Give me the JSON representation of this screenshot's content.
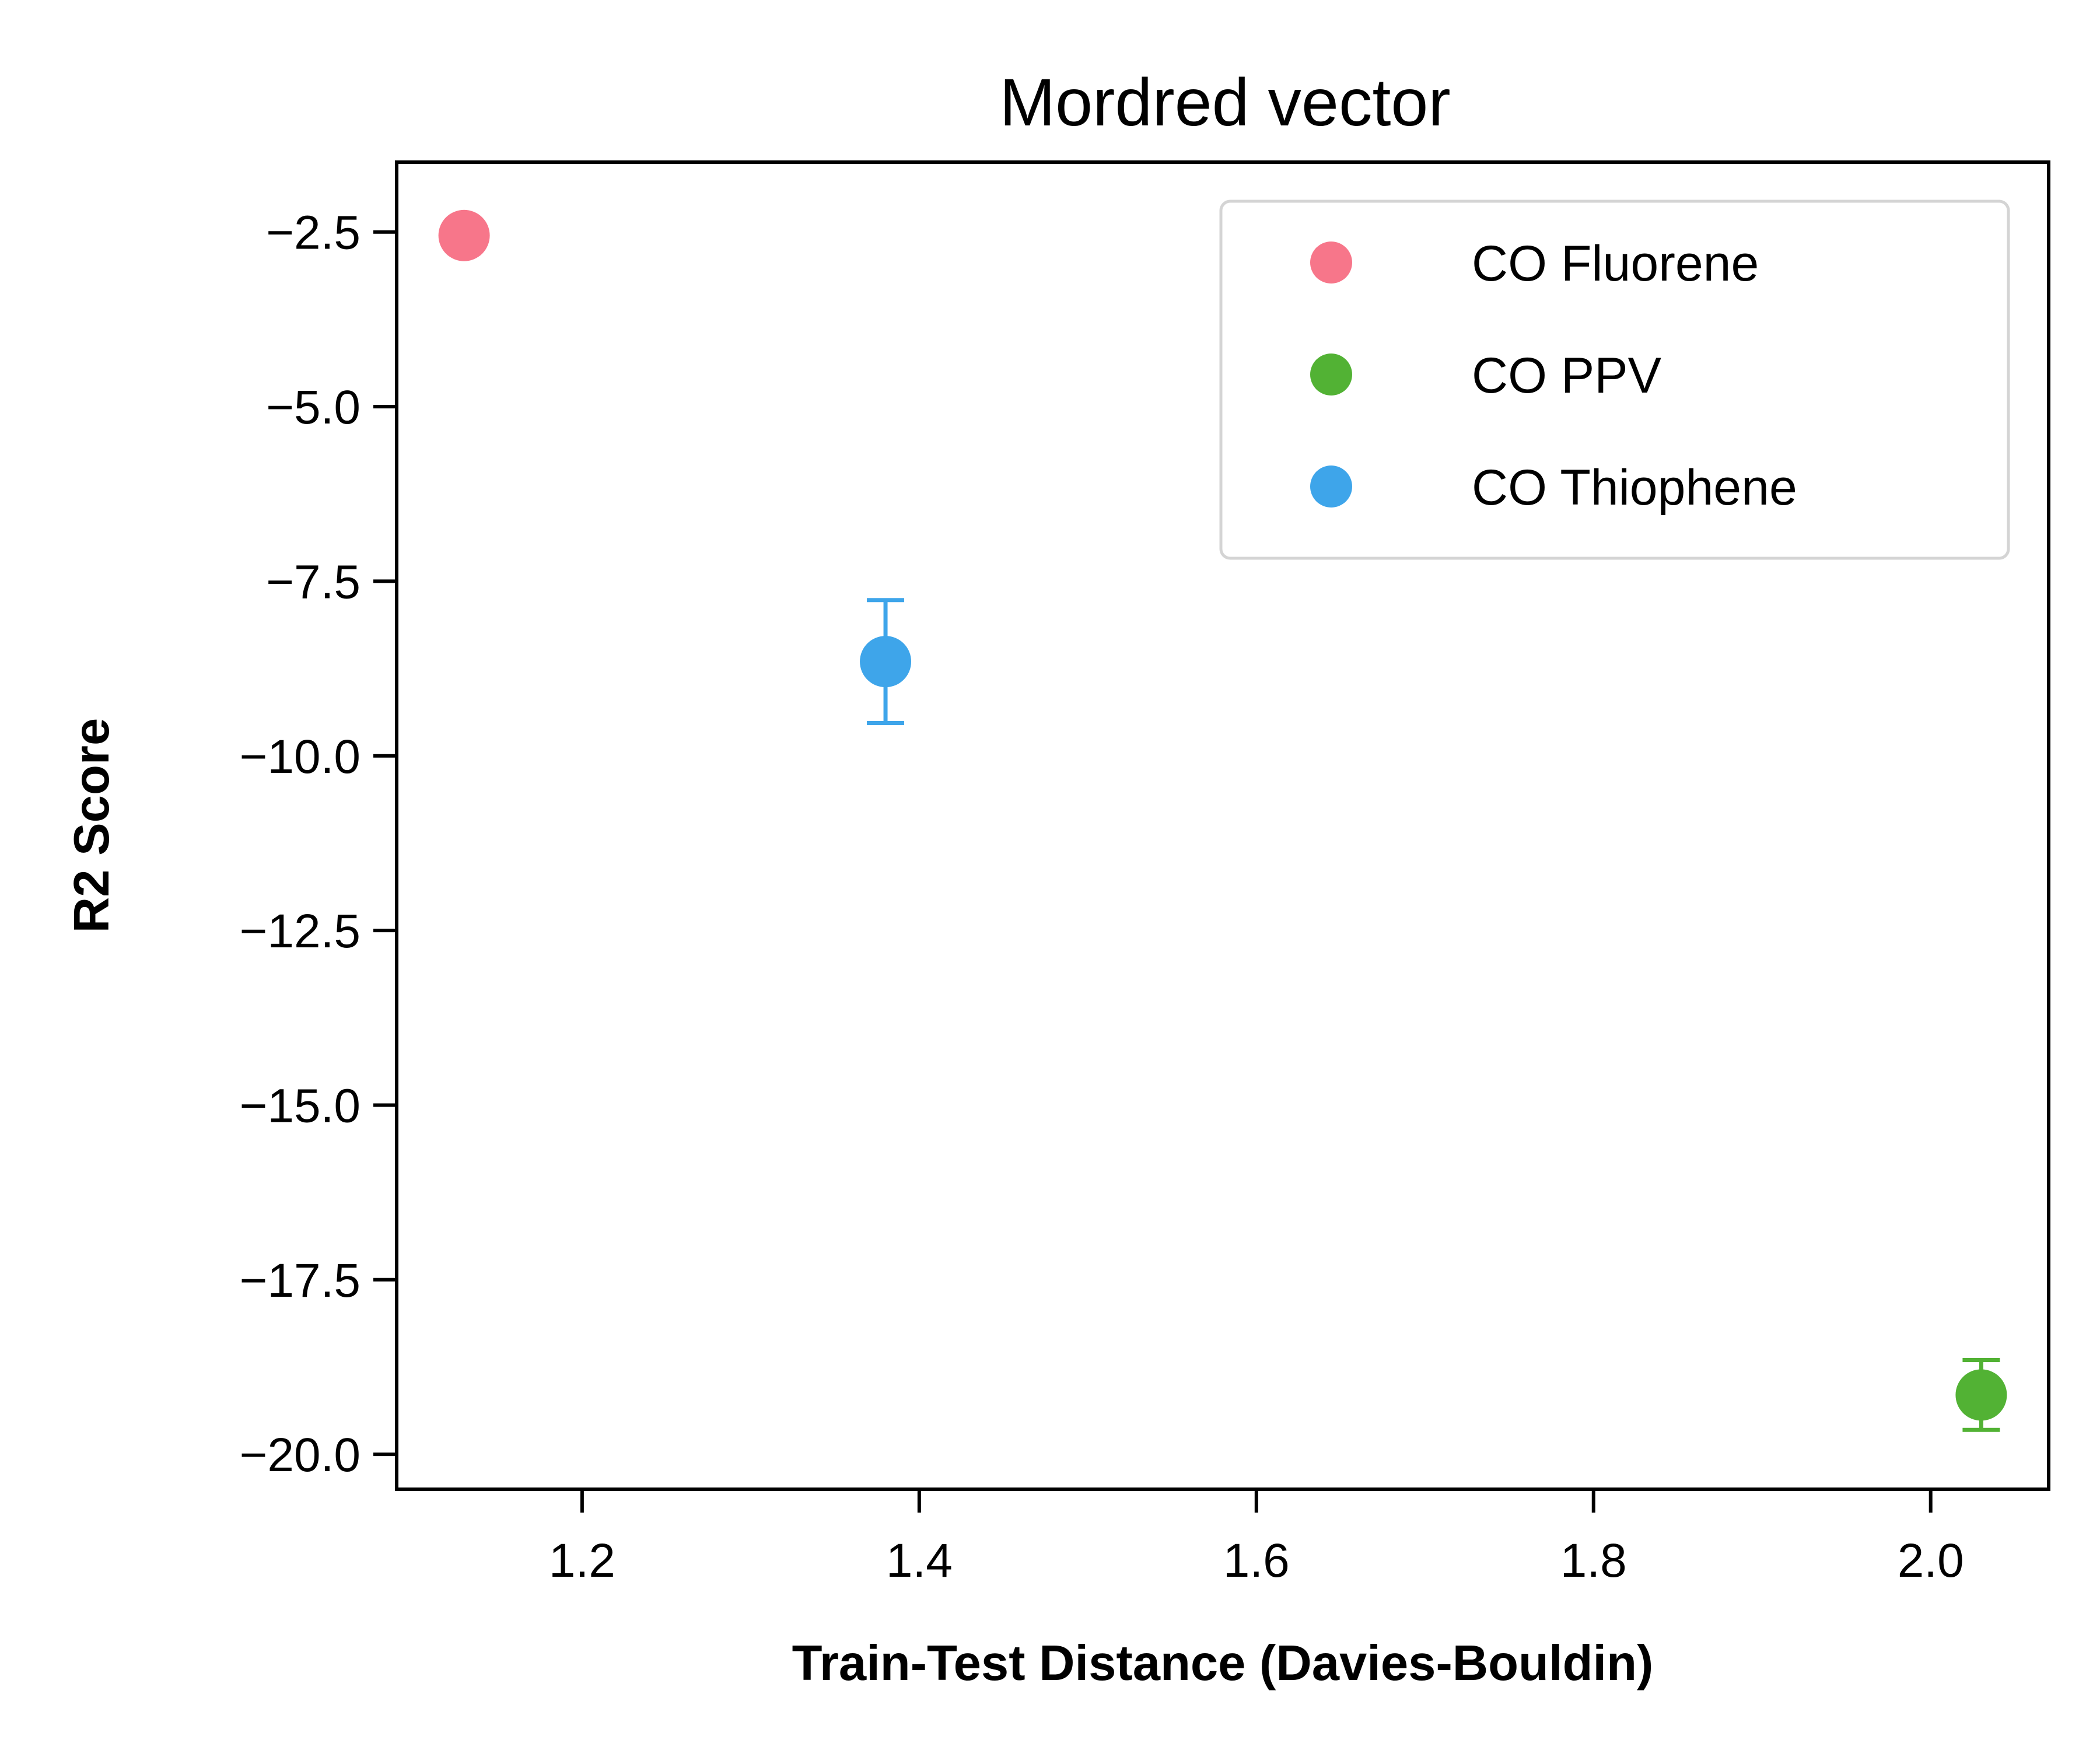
{
  "chart_data": {
    "type": "scatter",
    "title": "Mordred vector",
    "xlabel": "Train-Test Distance (Davies-Bouldin)",
    "ylabel": "R2 Score",
    "xlim": [
      1.09,
      2.07
    ],
    "ylim": [
      -20.5,
      -1.5
    ],
    "xticks": [
      1.2,
      1.4,
      1.6,
      1.8,
      2.0
    ],
    "xtick_labels": [
      "1.2",
      "1.4",
      "1.6",
      "1.8",
      "2.0"
    ],
    "yticks": [
      -2.5,
      -5.0,
      -7.5,
      -10.0,
      -12.5,
      -15.0,
      -17.5,
      -20.0
    ],
    "ytick_labels": [
      "−2.5",
      "−5.0",
      "−7.5",
      "−10.0",
      "−12.5",
      "−15.0",
      "−17.5",
      "−20.0"
    ],
    "grid": false,
    "legend_position": "top-right",
    "series": [
      {
        "name": "CO Fluorene",
        "color": "#f7768a",
        "x": [
          1.13
        ],
        "y": [
          -2.55
        ],
        "yerr": [
          0.0
        ]
      },
      {
        "name": "CO PPV",
        "color": "#52b234",
        "x": [
          2.03
        ],
        "y": [
          -19.15
        ],
        "yerr": [
          0.5
        ]
      },
      {
        "name": "CO Thiophene",
        "color": "#3ea5ea",
        "x": [
          1.38
        ],
        "y": [
          -8.65
        ],
        "yerr": [
          0.88
        ]
      }
    ]
  }
}
